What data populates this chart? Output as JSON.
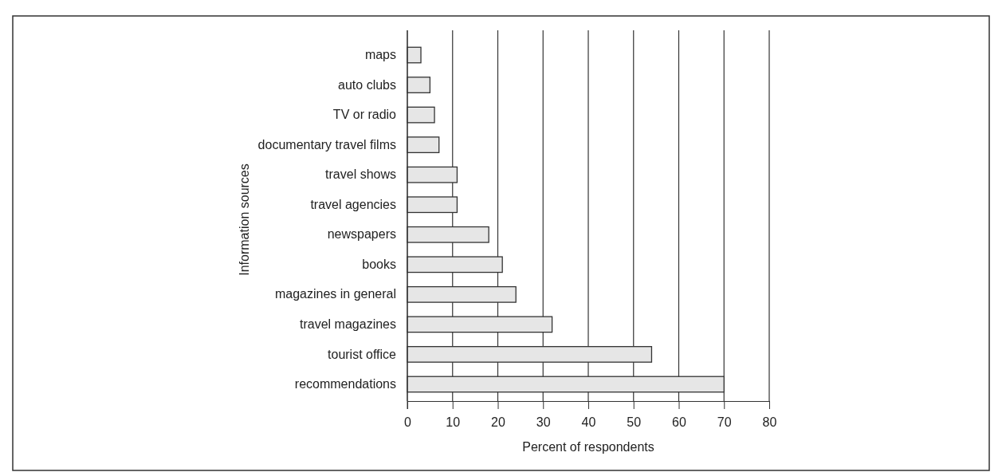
{
  "chart_data": {
    "type": "bar",
    "orientation": "horizontal",
    "ylabel": "Information sources",
    "xlabel": "Percent of respondents",
    "categories": [
      "maps",
      "auto clubs",
      "TV or radio",
      "documentary travel films",
      "travel shows",
      "travel agencies",
      "newspapers",
      "books",
      "magazines in general",
      "travel magazines",
      "tourist office",
      "recommendations"
    ],
    "values": [
      3,
      5,
      6,
      7,
      11,
      11,
      18,
      21,
      24,
      32,
      54,
      70
    ],
    "color": "#e6e6e6",
    "xlim": [
      0,
      80
    ],
    "xticks": [
      0,
      10,
      20,
      30,
      40,
      50,
      60,
      70,
      80
    ],
    "grid": "x"
  }
}
